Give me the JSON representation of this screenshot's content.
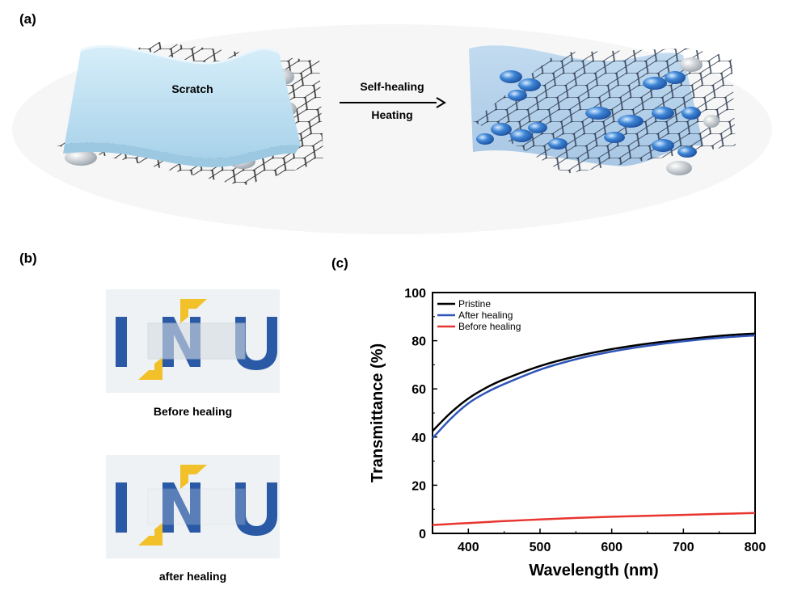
{
  "panels": {
    "a": {
      "label": "(a)",
      "scratch_text": "Scratch",
      "arrow_top": "Self-healing",
      "arrow_bottom": "Heating"
    },
    "b": {
      "label": "(b)",
      "photos": [
        {
          "logo": "INU",
          "caption": "Before healing"
        },
        {
          "logo": "INU",
          "caption": "after healing"
        }
      ]
    },
    "c": {
      "label": "(c)"
    }
  },
  "colors": {
    "pristine": "#000000",
    "after_healing": "#2e55b7",
    "before_healing": "#e8352f",
    "logo_blue": "#2a5aa6",
    "logo_yellow": "#f2c029",
    "film": "#bfe0f0",
    "cap_blue": "#3e86d6"
  },
  "chart_data": {
    "type": "line",
    "xlabel": "Wavelength (nm)",
    "ylabel": "Transmittance (%)",
    "xlim": [
      350,
      800
    ],
    "ylim": [
      0,
      100
    ],
    "xticks": [
      400,
      500,
      600,
      700,
      800
    ],
    "yticks": [
      0,
      20,
      40,
      60,
      80,
      100
    ],
    "legend_position": "top-left",
    "grid": false,
    "x": [
      350,
      375,
      400,
      425,
      450,
      500,
      550,
      600,
      650,
      700,
      750,
      800
    ],
    "series": [
      {
        "name": "Pristine",
        "color": "#000000",
        "values": [
          42.5,
          50,
          56,
          60.5,
          64,
          69.5,
          73.5,
          76.5,
          78.8,
          80.5,
          82,
          83
        ]
      },
      {
        "name": "After healing",
        "color": "#2e55b7",
        "values": [
          39.5,
          47.5,
          54,
          58.5,
          62,
          68,
          72.3,
          75.5,
          77.9,
          79.8,
          81.2,
          82.2
        ]
      },
      {
        "name": "Before healing",
        "color": "#e8352f",
        "values": [
          3.5,
          3.9,
          4.3,
          4.7,
          5.1,
          5.8,
          6.4,
          6.9,
          7.3,
          7.7,
          8.1,
          8.5
        ]
      }
    ]
  }
}
